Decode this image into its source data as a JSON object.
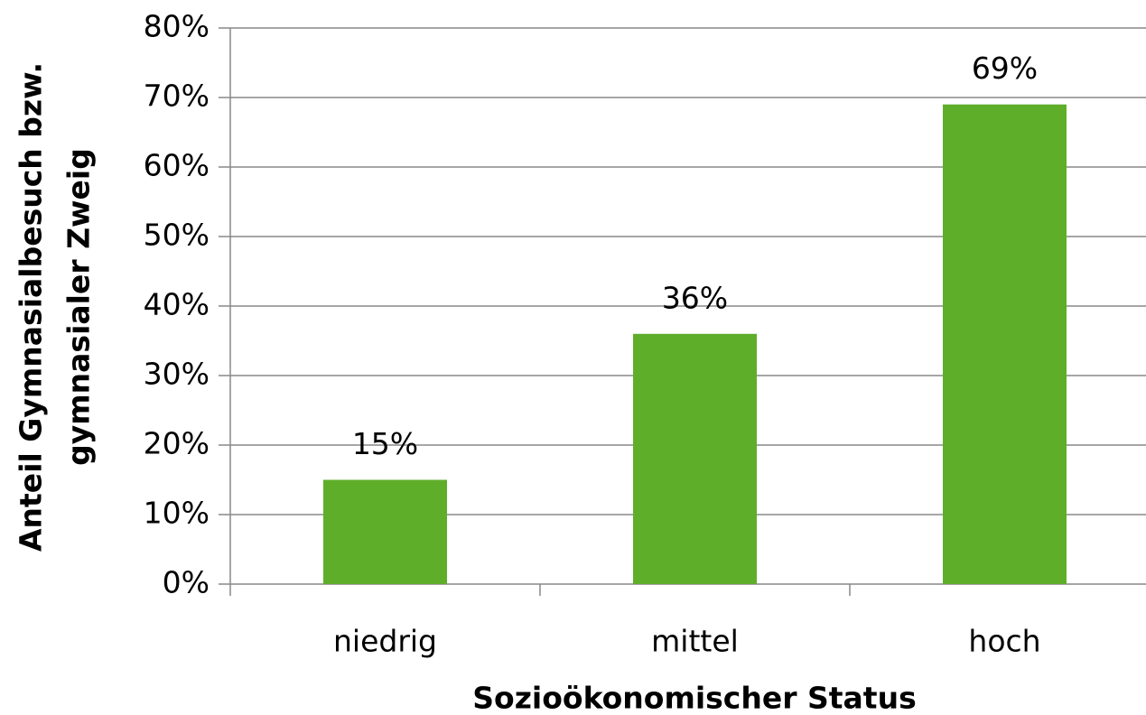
{
  "chart_data": {
    "type": "bar",
    "categories": [
      "niedrig",
      "mittel",
      "hoch"
    ],
    "values": [
      15,
      36,
      69
    ],
    "value_labels": [
      "15%",
      "36%",
      "69%"
    ],
    "color": "#5eae2a",
    "ylim": [
      0,
      80
    ],
    "yticks": [
      {
        "value": 0,
        "label": "0%"
      },
      {
        "value": 10,
        "label": "10%"
      },
      {
        "value": 20,
        "label": "20%"
      },
      {
        "value": 30,
        "label": "30%"
      },
      {
        "value": 40,
        "label": "40%"
      },
      {
        "value": 50,
        "label": "50%"
      },
      {
        "value": 60,
        "label": "60%"
      },
      {
        "value": 70,
        "label": "70%"
      },
      {
        "value": 80,
        "label": "80%"
      }
    ],
    "grid": true,
    "xlabel": "Sozioökonomischer Status",
    "ylabel": [
      "Anteil Gymnasialbesuch bzw.",
      "gymnasialer Zweig"
    ]
  }
}
